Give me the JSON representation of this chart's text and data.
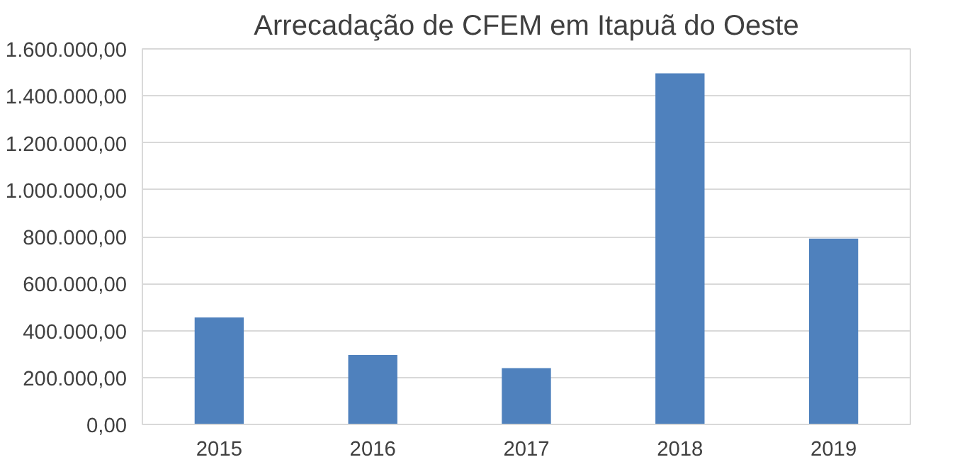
{
  "chart_data": {
    "type": "bar",
    "title": "Arrecadação de CFEM em Itapuã do Oeste",
    "categories": [
      "2015",
      "2016",
      "2017",
      "2018",
      "2019"
    ],
    "values": [
      456000,
      296000,
      240000,
      1496000,
      792000
    ],
    "color": "#4f81bd",
    "ylim": [
      0,
      1600000
    ],
    "yticks": [
      {
        "value": 0,
        "label": "0,00"
      },
      {
        "value": 200000,
        "label": "200.000,00"
      },
      {
        "value": 400000,
        "label": "400.000,00"
      },
      {
        "value": 600000,
        "label": "600.000,00"
      },
      {
        "value": 800000,
        "label": "800.000,00"
      },
      {
        "value": 1000000,
        "label": "1.000.000,00"
      },
      {
        "value": 1200000,
        "label": "1.200.000,00"
      },
      {
        "value": 1400000,
        "label": "1.400.000,00"
      },
      {
        "value": 1600000,
        "label": "1.600.000,00"
      }
    ],
    "grid": "y"
  }
}
